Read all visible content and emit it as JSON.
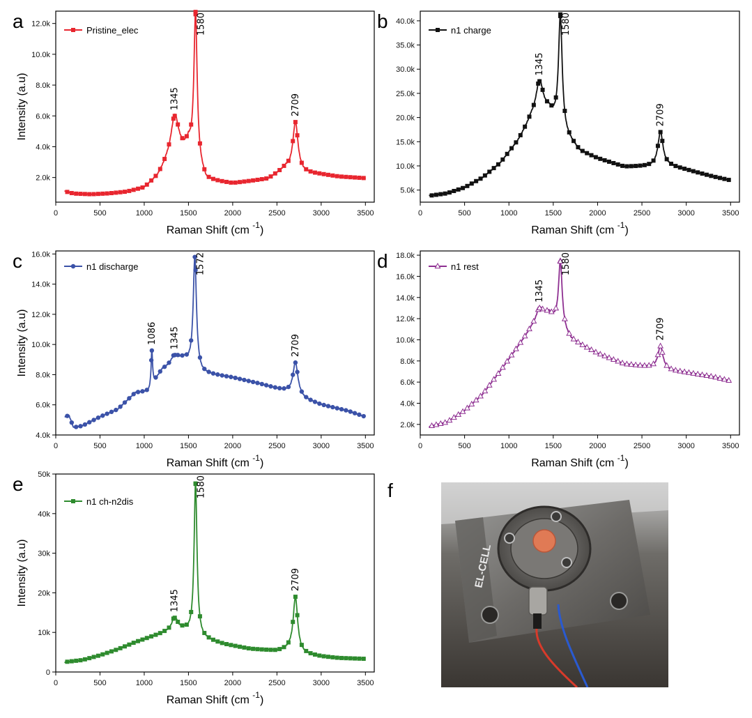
{
  "chart_data": [
    {
      "id": "a",
      "type": "line",
      "label": "a",
      "title": "",
      "legend": "Pristine_elec",
      "color": "#e8262f",
      "marker": "square-filled",
      "xlabel": "Raman Shift (cm",
      "xlabel_sup": "-1",
      "xlabel_end": ")",
      "ylabel": "Intensity (a.u)",
      "xlim": [
        0,
        3600
      ],
      "ylim": [
        400,
        12800
      ],
      "xticks": [
        0,
        500,
        1000,
        1500,
        2000,
        2500,
        3000,
        3500
      ],
      "yticks": [
        2000,
        4000,
        6000,
        8000,
        10000,
        12000
      ],
      "yticklabels": [
        "2.0k",
        "4.0k",
        "6.0k",
        "8.0k",
        "10.0k",
        "12.0k"
      ],
      "baseline": [
        [
          100,
          1100
        ],
        [
          200,
          950
        ],
        [
          400,
          900
        ],
        [
          600,
          950
        ],
        [
          800,
          1050
        ],
        [
          1000,
          1300
        ],
        [
          1150,
          2000
        ],
        [
          1250,
          2800
        ],
        [
          1450,
          3600
        ],
        [
          1500,
          4000
        ],
        [
          1700,
          1800
        ],
        [
          2000,
          1600
        ],
        [
          2400,
          1900
        ],
        [
          2600,
          2600
        ],
        [
          2800,
          2300
        ],
        [
          3000,
          2200
        ],
        [
          3200,
          2050
        ],
        [
          3500,
          1950
        ]
      ],
      "peaks": [
        {
          "x": 1345,
          "y": 6000,
          "w": 55,
          "label": "1345"
        },
        {
          "x": 1580,
          "y": 12600,
          "w": 22,
          "label": "1580"
        },
        {
          "x": 2709,
          "y": 5600,
          "w": 35,
          "label": "2709"
        }
      ]
    },
    {
      "id": "b",
      "type": "line",
      "label": "b",
      "title": "",
      "legend": "n1 charge",
      "color": "#111111",
      "marker": "square-filled",
      "xlabel": "Raman Shift (cm",
      "xlabel_sup": "-1",
      "xlabel_end": ")",
      "ylabel": "",
      "xlim": [
        0,
        3600
      ],
      "ylim": [
        2500,
        42000
      ],
      "xticks": [
        0,
        500,
        1000,
        1500,
        2000,
        2500,
        3000,
        3500
      ],
      "yticks": [
        5000,
        10000,
        15000,
        20000,
        25000,
        30000,
        35000,
        40000
      ],
      "yticklabels": [
        "5.0k",
        "10.0k",
        "15.0k",
        "20.0k",
        "25.0k",
        "30.0k",
        "35.0k",
        "40.0k"
      ],
      "baseline": [
        [
          100,
          3800
        ],
        [
          300,
          4300
        ],
        [
          500,
          5500
        ],
        [
          700,
          7500
        ],
        [
          900,
          10500
        ],
        [
          1100,
          15000
        ],
        [
          1250,
          19500
        ],
        [
          1450,
          21000
        ],
        [
          1650,
          16000
        ],
        [
          1800,
          13000
        ],
        [
          2000,
          11500
        ],
        [
          2300,
          9800
        ],
        [
          2600,
          9900
        ],
        [
          2800,
          10000
        ],
        [
          3000,
          9200
        ],
        [
          3300,
          7800
        ],
        [
          3500,
          7000
        ]
      ],
      "peaks": [
        {
          "x": 1345,
          "y": 27500,
          "w": 50,
          "label": "1345"
        },
        {
          "x": 1580,
          "y": 41000,
          "w": 25,
          "label": "1580"
        },
        {
          "x": 2709,
          "y": 17000,
          "w": 35,
          "label": "2709"
        }
      ]
    },
    {
      "id": "c",
      "type": "line",
      "label": "c",
      "title": "",
      "legend": "n1 discharge",
      "color": "#3b52a8",
      "marker": "circle-filled",
      "xlabel": "Raman Shift (cm",
      "xlabel_sup": "-1",
      "xlabel_end": ")",
      "ylabel": "Intensity (a.u)",
      "xlim": [
        0,
        3600
      ],
      "ylim": [
        4000,
        16200
      ],
      "xticks": [
        0,
        500,
        1000,
        1500,
        2000,
        2500,
        3000,
        3500
      ],
      "yticks": [
        4000,
        6000,
        8000,
        10000,
        12000,
        14000,
        16000
      ],
      "yticklabels": [
        "4.0k",
        "6.0k",
        "8.0k",
        "10.0k",
        "12.0k",
        "14.0k",
        "16.0k"
      ],
      "baseline": [
        [
          100,
          5200
        ],
        [
          150,
          5300
        ],
        [
          200,
          4500
        ],
        [
          300,
          4600
        ],
        [
          500,
          5200
        ],
        [
          700,
          5700
        ],
        [
          900,
          6800
        ],
        [
          1050,
          6900
        ],
        [
          1200,
          8300
        ],
        [
          1450,
          9000
        ],
        [
          1650,
          8100
        ],
        [
          2000,
          7800
        ],
        [
          2300,
          7400
        ],
        [
          2600,
          6900
        ],
        [
          2800,
          6400
        ],
        [
          3000,
          6000
        ],
        [
          3300,
          5600
        ],
        [
          3500,
          5200
        ]
      ],
      "peaks": [
        {
          "x": 1086,
          "y": 9600,
          "w": 10,
          "label": "1086"
        },
        {
          "x": 1345,
          "y": 9300,
          "w": 50,
          "label": "1345"
        },
        {
          "x": 1572,
          "y": 15800,
          "w": 22,
          "label": "1572"
        },
        {
          "x": 2709,
          "y": 8800,
          "w": 35,
          "label": "2709"
        }
      ]
    },
    {
      "id": "d",
      "type": "line",
      "label": "d",
      "title": "",
      "legend": "n1 rest",
      "color": "#8e2f91",
      "marker": "triangle-open",
      "xlabel": "Raman Shift (cm",
      "xlabel_sup": "-1",
      "xlabel_end": ")",
      "ylabel": "",
      "xlim": [
        0,
        3600
      ],
      "ylim": [
        1000,
        18400
      ],
      "xticks": [
        0,
        500,
        1000,
        1500,
        2000,
        2500,
        3000,
        3500
      ],
      "yticks": [
        2000,
        4000,
        6000,
        8000,
        10000,
        12000,
        14000,
        16000,
        18000
      ],
      "yticklabels": [
        "2.0k",
        "4.0k",
        "6.0k",
        "8.0k",
        "10.0k",
        "12.0k",
        "14.0k",
        "16.0k",
        "18.0k"
      ],
      "baseline": [
        [
          100,
          1800
        ],
        [
          300,
          2200
        ],
        [
          500,
          3300
        ],
        [
          700,
          4800
        ],
        [
          900,
          7000
        ],
        [
          1100,
          9300
        ],
        [
          1250,
          11000
        ],
        [
          1450,
          12400
        ],
        [
          1700,
          10000
        ],
        [
          2000,
          8700
        ],
        [
          2300,
          7700
        ],
        [
          2600,
          7400
        ],
        [
          2800,
          7100
        ],
        [
          3000,
          6900
        ],
        [
          3300,
          6500
        ],
        [
          3500,
          6100
        ]
      ],
      "peaks": [
        {
          "x": 1345,
          "y": 13000,
          "w": 50,
          "label": "1345"
        },
        {
          "x": 1580,
          "y": 17400,
          "w": 25,
          "label": "1580"
        },
        {
          "x": 2709,
          "y": 9400,
          "w": 35,
          "label": "2709"
        }
      ]
    },
    {
      "id": "e",
      "type": "line",
      "label": "e",
      "title": "",
      "legend": "n1 ch-n2dis",
      "color": "#2e8b2e",
      "marker": "square-filled",
      "xlabel": "Raman Shift (cm",
      "xlabel_sup": "-1",
      "xlabel_end": ")",
      "ylabel": "Intensity (a.u)",
      "xlim": [
        0,
        3600
      ],
      "ylim": [
        0,
        50000
      ],
      "xticks": [
        0,
        500,
        1000,
        1500,
        2000,
        2500,
        3000,
        3500
      ],
      "yticks": [
        0,
        10000,
        20000,
        30000,
        40000,
        50000
      ],
      "yticklabels": [
        "0",
        "10k",
        "20k",
        "30k",
        "40k",
        "50k"
      ],
      "baseline": [
        [
          100,
          2500
        ],
        [
          300,
          3000
        ],
        [
          500,
          4200
        ],
        [
          700,
          5700
        ],
        [
          900,
          7500
        ],
        [
          1100,
          9000
        ],
        [
          1250,
          10000
        ],
        [
          1450,
          10500
        ],
        [
          1650,
          8500
        ],
        [
          1900,
          7000
        ],
        [
          2200,
          5800
        ],
        [
          2500,
          5300
        ],
        [
          2650,
          5800
        ],
        [
          2800,
          4600
        ],
        [
          3000,
          3900
        ],
        [
          3200,
          3500
        ],
        [
          3500,
          3300
        ]
      ],
      "peaks": [
        {
          "x": 1345,
          "y": 13700,
          "w": 40,
          "label": "1345"
        },
        {
          "x": 1580,
          "y": 47500,
          "w": 20,
          "label": "1580"
        },
        {
          "x": 2709,
          "y": 19000,
          "w": 30,
          "label": "2709"
        }
      ]
    }
  ],
  "photo": {
    "label": "f",
    "brand_text": "EL-CELL"
  }
}
